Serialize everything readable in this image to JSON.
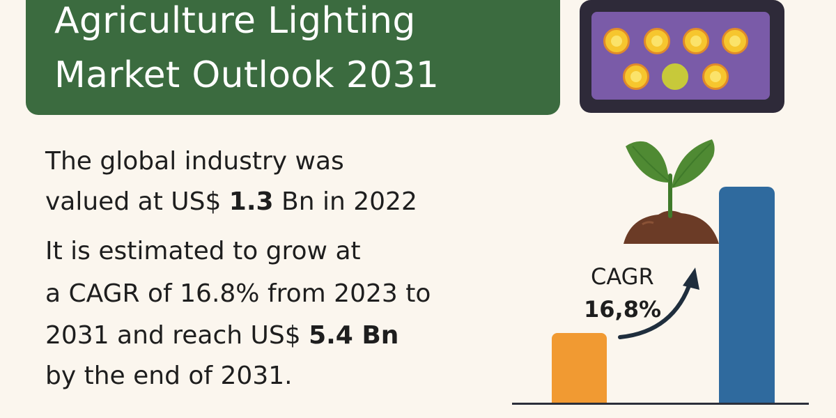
{
  "header": {
    "title_line_1": "Agriculture Lighting",
    "title_line_2": "Market Outlook 2031"
  },
  "stats": {
    "line_1": "The global industry was",
    "line_2_prefix": "valued at US$ ",
    "value_2022": "1.3",
    "line_2_suffix": " Bn in 2022",
    "line_3": "It is estimated to grow at",
    "line_4": "a CAGR of 16.8% from 2023 to",
    "line_5_prefix": "2031 and reach US$ ",
    "value_2031": "5.4 Bn",
    "line_6": "by the end of 2031."
  },
  "chart": {
    "cagr_label": "CAGR",
    "cagr_value": "16,8%"
  },
  "colors": {
    "banner": "#3b6b3f",
    "small_bar": "#f19a32",
    "tall_bar": "#2f6a9e",
    "panel_frame": "#2e2a39",
    "panel_inner": "#7a5ba8",
    "led_yellow": "#f6c62e",
    "led_green": "#c7c93a",
    "leaf_green": "#4f8a33",
    "soil": "#6b3b26"
  },
  "icons": {
    "panel": "led-grow-light-icon",
    "plant": "seedling-icon",
    "arrow": "growth-arrow-icon"
  }
}
